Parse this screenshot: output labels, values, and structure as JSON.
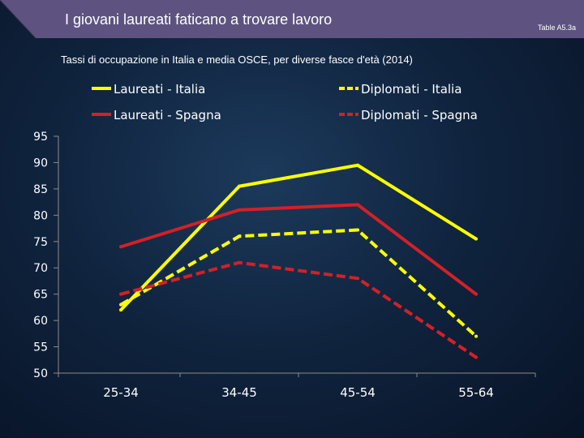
{
  "header": {
    "title": "I giovani laureati faticano a trovare lavoro",
    "table_ref": "Table A5.3a"
  },
  "colors": {
    "header": "#5e5380",
    "yellow": "#ffff00",
    "red": "#d32027",
    "axis": "#8c8c8c"
  },
  "chart_data": {
    "type": "line",
    "title": "Tassi di occupazione in Italia e media OSCE, per diverse fasce d'età (2014)",
    "categories": [
      "25-34",
      "34-45",
      "45-54",
      "55-64"
    ],
    "ylim": [
      50,
      95
    ],
    "yticks": [
      50,
      55,
      60,
      65,
      70,
      75,
      80,
      85,
      90,
      95
    ],
    "grid": false,
    "legend_position": "top",
    "series": [
      {
        "name": "Laureati - Italia",
        "values": [
          62,
          85.5,
          89.5,
          75.5
        ],
        "color": "#ffff00",
        "dashed": false
      },
      {
        "name": "Diplomati - Italia",
        "values": [
          63,
          76,
          77.2,
          57
        ],
        "color": "#ffff00",
        "dashed": true
      },
      {
        "name": "Laureati - Spagna",
        "values": [
          74,
          81,
          82,
          65
        ],
        "color": "#d32027",
        "dashed": false
      },
      {
        "name": "Diplomati - Spagna",
        "values": [
          65,
          71,
          68,
          53
        ],
        "color": "#d32027",
        "dashed": true
      }
    ]
  }
}
